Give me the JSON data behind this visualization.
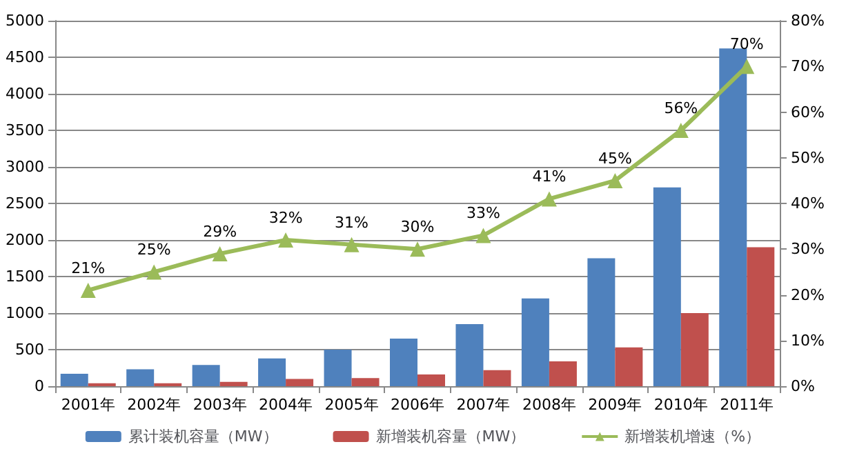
{
  "chart_data": {
    "type": "bar",
    "categories": [
      "2001年",
      "2002年",
      "2003年",
      "2004年",
      "2005年",
      "2006年",
      "2007年",
      "2008年",
      "2009年",
      "2010年",
      "2011年"
    ],
    "series": [
      {
        "name": "累计装机容量（MW）",
        "color": "#4f81bd",
        "values": [
          170,
          230,
          290,
          380,
          500,
          650,
          850,
          1200,
          1750,
          2720,
          4620
        ]
      },
      {
        "name": "新增装机容量（MW）",
        "color": "#c0504d",
        "values": [
          40,
          40,
          60,
          100,
          110,
          160,
          220,
          340,
          530,
          1000,
          1900
        ]
      },
      {
        "name": "新增装机增速（%）",
        "type": "line",
        "axis": "y2",
        "color": "#9bbb59",
        "marker": "triangle",
        "data_labels": true,
        "value_labels": [
          "21%",
          "25%",
          "29%",
          "32%",
          "31%",
          "30%",
          "33%",
          "41%",
          "45%",
          "56%",
          "70%"
        ],
        "values": [
          21,
          25,
          29,
          32,
          31,
          30,
          33,
          41,
          45,
          56,
          70
        ]
      }
    ],
    "ylim": [
      0,
      5000
    ],
    "yticks": [
      0,
      500,
      1000,
      1500,
      2000,
      2500,
      3000,
      3500,
      4000,
      4500,
      5000
    ],
    "y2lim": [
      0,
      80
    ],
    "y2ticks": [
      {
        "value": 0,
        "label": "0%"
      },
      {
        "value": 10,
        "label": "10%"
      },
      {
        "value": 20,
        "label": "20%"
      },
      {
        "value": 30,
        "label": "30%"
      },
      {
        "value": 40,
        "label": "40%"
      },
      {
        "value": 50,
        "label": "50%"
      },
      {
        "value": 60,
        "label": "60%"
      },
      {
        "value": 70,
        "label": "70%"
      },
      {
        "value": 80,
        "label": "80%"
      }
    ],
    "grid": "y",
    "legend": "bottom"
  }
}
